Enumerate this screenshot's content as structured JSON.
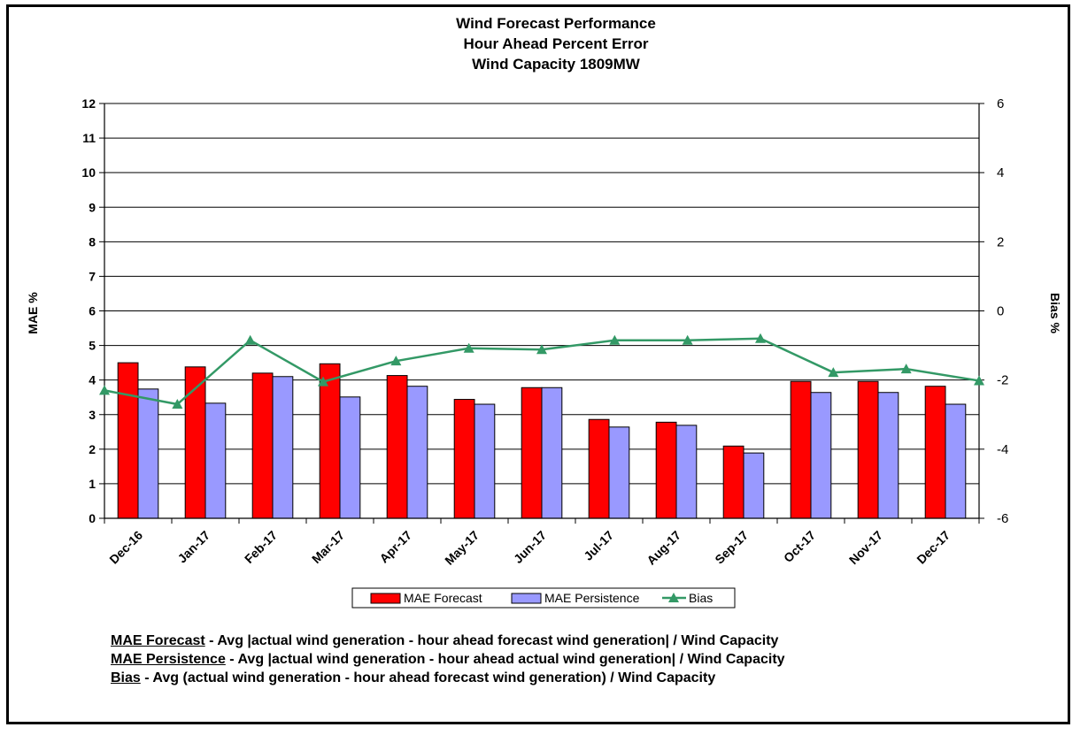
{
  "chart_data": {
    "type": "bar",
    "title": [
      "Wind Forecast Performance",
      "Hour Ahead Percent Error",
      "Wind Capacity 1809MW"
    ],
    "categories": [
      "Dec-16",
      "Jan-17",
      "Feb-17",
      "Mar-17",
      "Apr-17",
      "May-17",
      "Jun-17",
      "Jul-17",
      "Aug-17",
      "Sep-17",
      "Oct-17",
      "Nov-17",
      "Dec-17"
    ],
    "ylabel": "MAE %",
    "y2label": "Bias %",
    "ylim": [
      0,
      12
    ],
    "y2lim": [
      -6,
      6
    ],
    "yticks": [
      "0",
      "1",
      "2",
      "3",
      "4",
      "5",
      "6",
      "7",
      "8",
      "9",
      "10",
      "11",
      "12"
    ],
    "y2ticks": [
      "-6",
      "-4",
      "-2",
      "0",
      "2",
      "4",
      "6"
    ],
    "grid": true,
    "legend_position": "bottom",
    "series": [
      {
        "name": "MAE Forecast",
        "type": "bar",
        "axis": "left",
        "color": "#ff0000",
        "values": [
          4.5,
          4.38,
          4.2,
          4.47,
          4.13,
          3.44,
          3.78,
          2.86,
          2.78,
          2.09,
          3.96,
          3.96,
          3.82
        ]
      },
      {
        "name": "MAE Persistence",
        "type": "bar",
        "axis": "left",
        "color": "#9999ff",
        "values": [
          3.74,
          3.33,
          4.1,
          3.51,
          3.82,
          3.3,
          3.78,
          2.64,
          2.69,
          1.89,
          3.64,
          3.64,
          3.3
        ]
      },
      {
        "name": "Bias",
        "type": "line",
        "axis": "right",
        "color": "#339966",
        "marker": "triangle",
        "values": [
          -2.3,
          -2.7,
          -0.85,
          -2.05,
          -1.45,
          -1.08,
          -1.12,
          -0.85,
          -0.85,
          -0.8,
          -1.78,
          -1.68,
          -2.02
        ]
      }
    ]
  },
  "notes": [
    {
      "term": "MAE Forecast",
      "text": " - Avg |actual wind generation - hour ahead forecast wind generation| / Wind Capacity"
    },
    {
      "term": "MAE Persistence",
      "text": " - Avg |actual wind generation - hour ahead actual wind generation| / Wind Capacity"
    },
    {
      "term": "Bias",
      "text": " - Avg (actual wind generation - hour ahead forecast wind generation) / Wind Capacity"
    }
  ]
}
